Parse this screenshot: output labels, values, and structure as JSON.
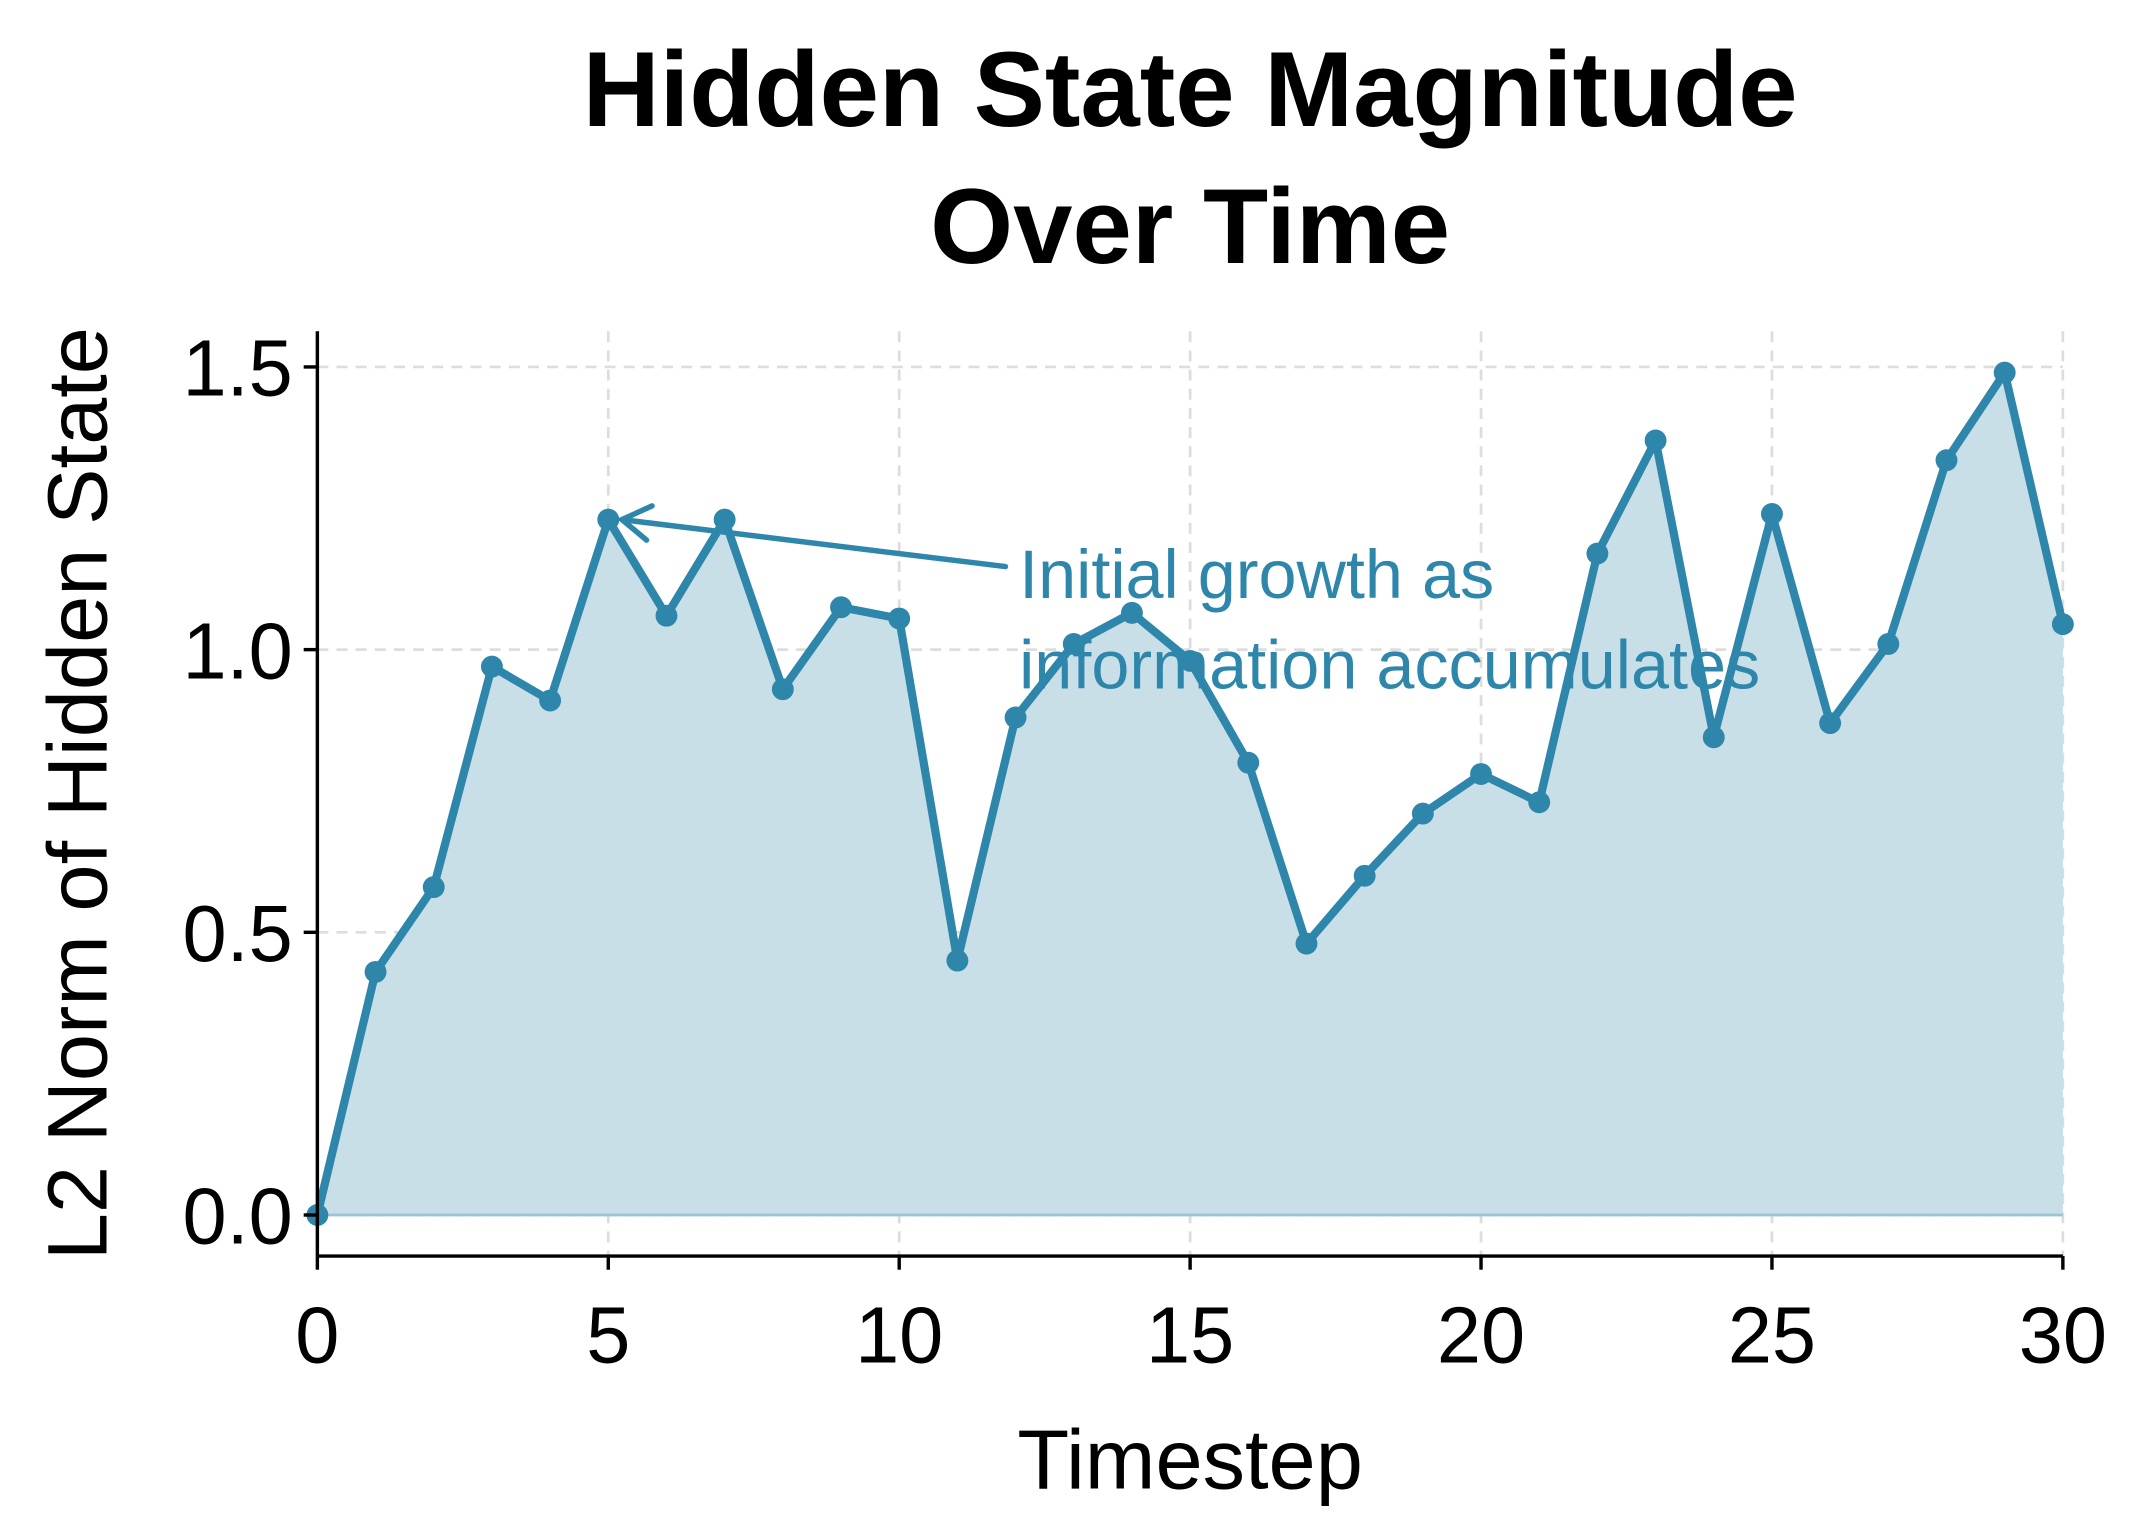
{
  "chart_data": {
    "type": "area",
    "title": "Hidden State Magnitude\nOver Time",
    "title_lines": [
      "Hidden State Magnitude",
      "Over Time"
    ],
    "xlabel": "Timestep",
    "ylabel": "L2 Norm of Hidden State",
    "xlim": [
      0,
      30
    ],
    "ylim": [
      -0.07,
      1.57
    ],
    "xticks": [
      0,
      5,
      10,
      15,
      20,
      25,
      30
    ],
    "yticks": [
      0.0,
      0.5,
      1.0,
      1.5
    ],
    "xtick_labels": [
      "0",
      "5",
      "10",
      "15",
      "20",
      "25",
      "30"
    ],
    "ytick_labels": [
      "0.0",
      "0.5",
      "1.0",
      "1.5"
    ],
    "grid": true,
    "x": [
      0,
      1,
      2,
      3,
      4,
      5,
      6,
      7,
      8,
      9,
      10,
      11,
      12,
      13,
      14,
      15,
      16,
      17,
      18,
      19,
      20,
      21,
      22,
      23,
      24,
      25,
      26,
      27,
      28,
      29,
      30
    ],
    "series": [
      {
        "name": "L2 Norm",
        "color": "#2E86AB",
        "fill_color": "#C8DFE8",
        "values": [
          0.0,
          0.43,
          0.58,
          0.97,
          0.91,
          1.23,
          1.06,
          1.23,
          0.93,
          1.075,
          1.055,
          0.45,
          0.88,
          1.01,
          1.065,
          0.98,
          0.8,
          0.48,
          0.6,
          0.71,
          0.78,
          0.73,
          1.17,
          1.37,
          0.845,
          1.24,
          0.87,
          1.01,
          1.335,
          1.49,
          1.045
        ]
      }
    ],
    "annotations": [
      {
        "text": "Initial growth as\ninformation accumulates",
        "lines": [
          "Initial growth as",
          "information accumulates"
        ],
        "xy": [
          5,
          1.23
        ],
        "xytext": [
          12,
          1.15
        ],
        "color": "#2E86AB"
      }
    ]
  }
}
